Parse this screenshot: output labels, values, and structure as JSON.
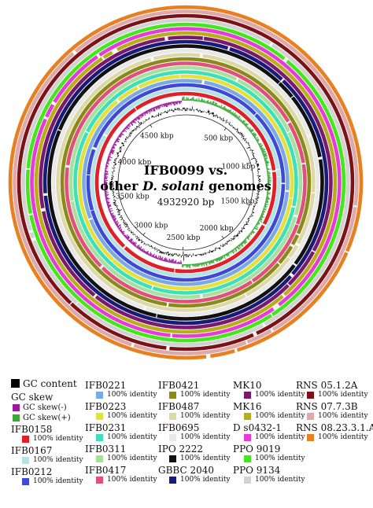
{
  "center": {
    "title_line1": "IFB0099 vs.",
    "title_line2_prefix": "other ",
    "title_line2_species": "D. solani",
    "title_line2_suffix": " genomes",
    "length": "4932920 bp"
  },
  "genome_length_bp": 4932920,
  "kbp_ticks": [
    {
      "label": "500 kbp",
      "value": 500
    },
    {
      "label": "1000 kbp",
      "value": 1000
    },
    {
      "label": "1500 kbp",
      "value": 1500
    },
    {
      "label": "2000 kbp",
      "value": 2000
    },
    {
      "label": "2500 kbp",
      "value": 2500
    },
    {
      "label": "3000 kbp",
      "value": 3000
    },
    {
      "label": "3500 kbp",
      "value": 3500
    },
    {
      "label": "4000 kbp",
      "value": 4000
    },
    {
      "label": "4500 kbp",
      "value": 4500
    }
  ],
  "legend": {
    "gc_content": {
      "label": "GC content",
      "color": "#000000"
    },
    "gc_skew": {
      "label": "GC skew",
      "items": [
        {
          "label": "GC skew(-)",
          "color": "#9b1a9b"
        },
        {
          "label": "GC skew(+)",
          "color": "#3aa83a"
        }
      ]
    },
    "identity_label": "100% identity",
    "genomes": [
      {
        "name": "IFB0158",
        "color": "#e01f26"
      },
      {
        "name": "IFB0167",
        "color": "#b3e3e8"
      },
      {
        "name": "IFB0212",
        "color": "#3f49d6"
      },
      {
        "name": "IFB0221",
        "color": "#7aa9e8"
      },
      {
        "name": "IFB0223",
        "color": "#e8e03a"
      },
      {
        "name": "IFB0231",
        "color": "#3de0b8"
      },
      {
        "name": "IFB0311",
        "color": "#a8e0a0"
      },
      {
        "name": "IFB0417",
        "color": "#e0507a"
      },
      {
        "name": "IFB0421",
        "color": "#8a8a1a"
      },
      {
        "name": "IFB0487",
        "color": "#ddd9a6"
      },
      {
        "name": "IFB0695",
        "color": "#e8e8e8"
      },
      {
        "name": "IPO 2222",
        "color": "#111111"
      },
      {
        "name": "GBBC 2040",
        "color": "#1a1a78"
      },
      {
        "name": "MK10",
        "color": "#7a1a6e"
      },
      {
        "name": "MK16",
        "color": "#b8ad1a"
      },
      {
        "name": "D s0432-1",
        "color": "#e83ad8"
      },
      {
        "name": "PPO 9019",
        "color": "#44e81a"
      },
      {
        "name": "PPO 9134",
        "color": "#d2d2d2"
      },
      {
        "name": "RNS 05.1.2A",
        "color": "#7a1218"
      },
      {
        "name": "RNS 07.7.3B",
        "color": "#e0a8a8"
      },
      {
        "name": "RNS 08.23.3.1.A",
        "color": "#e8801f"
      }
    ]
  }
}
